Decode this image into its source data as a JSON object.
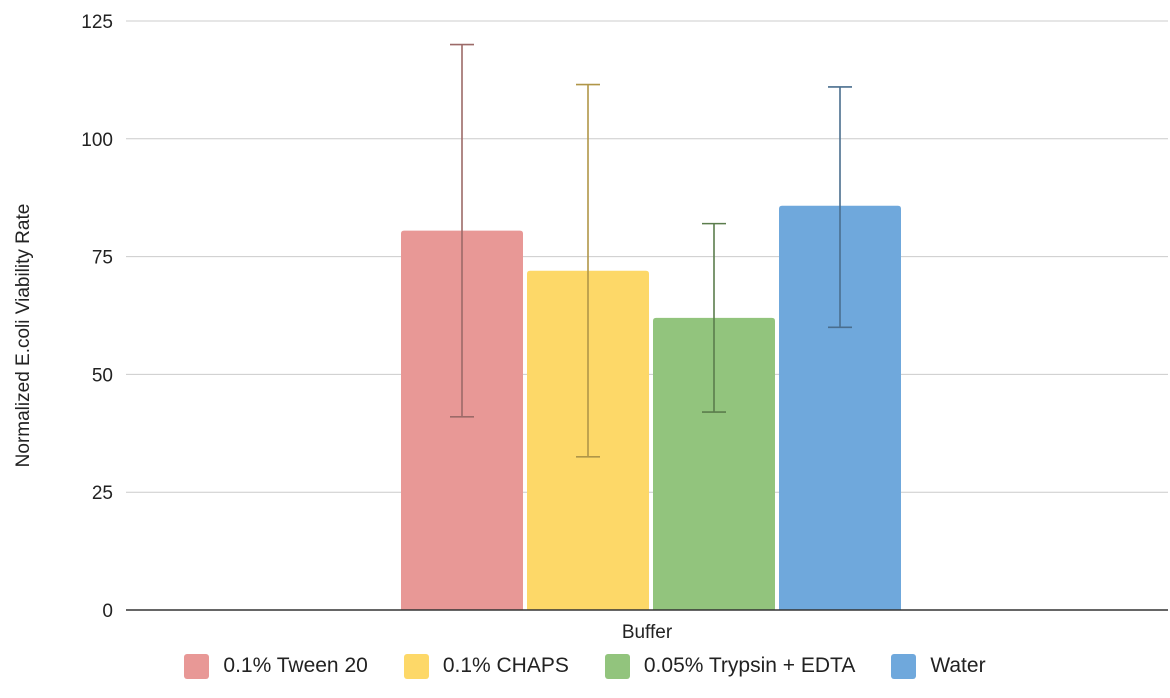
{
  "chart_data": {
    "type": "bar",
    "categories": [
      "Buffer"
    ],
    "xlabel": "Buffer",
    "ylabel": "Normalized E.coli Viability Rate",
    "ylim": [
      0,
      125
    ],
    "yticks": [
      0,
      25,
      50,
      75,
      100,
      125
    ],
    "grid": true,
    "legend_position": "bottom",
    "series": [
      {
        "name": "0.1% Tween 20",
        "values": [
          80.5
        ],
        "error_low": [
          41
        ],
        "error_high": [
          120
        ],
        "color": "#e89896",
        "error_color": "#9c6a68"
      },
      {
        "name": "0.1% CHAPS",
        "values": [
          72
        ],
        "error_low": [
          32.5
        ],
        "error_high": [
          111.5
        ],
        "color": "#fdd868",
        "error_color": "#b09648"
      },
      {
        "name": "0.05% Trypsin + EDTA",
        "values": [
          62
        ],
        "error_low": [
          42
        ],
        "error_high": [
          82
        ],
        "color": "#92c47d",
        "error_color": "#5b7d4d"
      },
      {
        "name": "Water",
        "values": [
          85.8
        ],
        "error_low": [
          60
        ],
        "error_high": [
          111
        ],
        "color": "#6fa8dc",
        "error_color": "#4a6e8e"
      }
    ]
  }
}
